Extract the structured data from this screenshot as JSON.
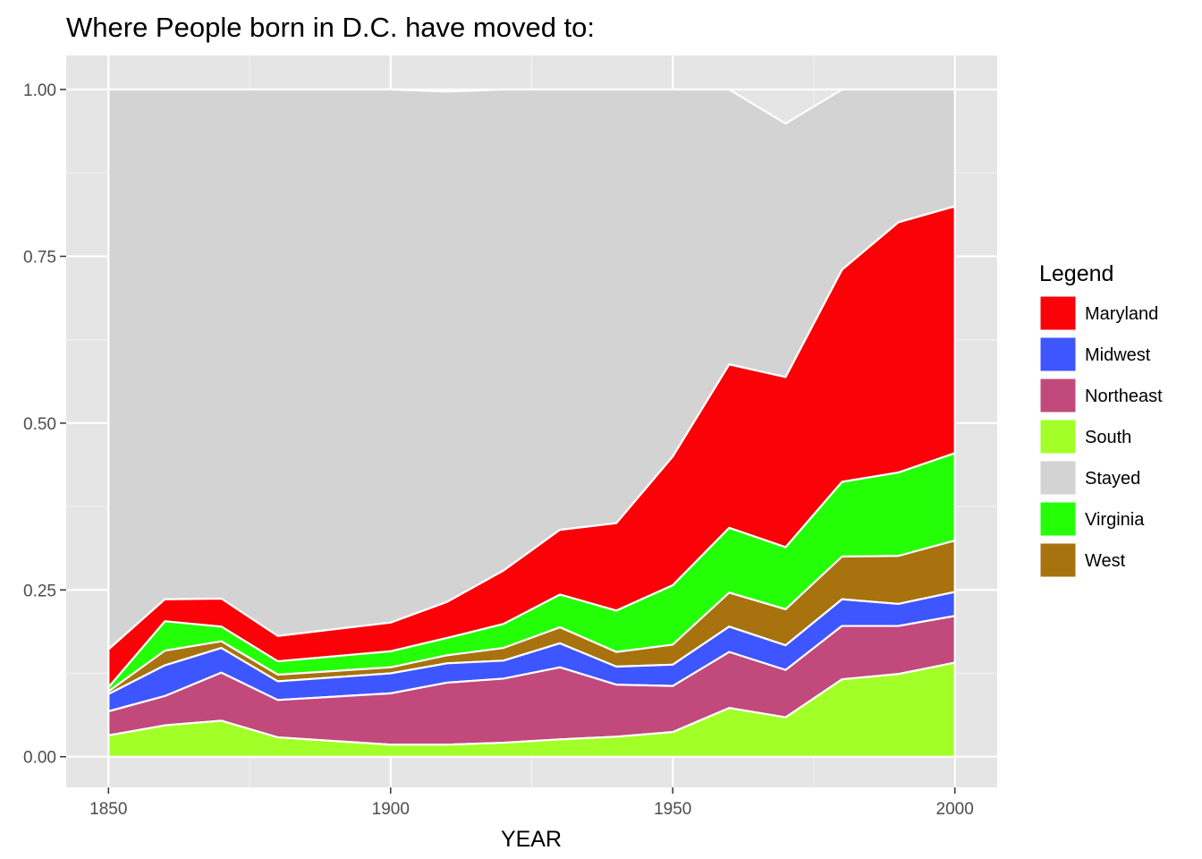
{
  "chart_data": {
    "type": "area",
    "stacked": true,
    "title": "Where People born in D.C. have moved to:",
    "xlabel": "YEAR",
    "ylabel": "",
    "xlim": [
      1842.5,
      2007.5
    ],
    "ylim": [
      -0.046,
      1.051
    ],
    "x_ticks": [
      1850,
      1900,
      1950,
      2000
    ],
    "y_ticks": [
      0,
      0.25,
      0.5,
      0.75,
      1.0
    ],
    "x_tick_labels": [
      "1850",
      "1900",
      "1950",
      "2000"
    ],
    "y_tick_labels": [
      "0.00",
      "0.25",
      "0.50",
      "0.75",
      "1.00"
    ],
    "x": [
      1850,
      1860,
      1870,
      1880,
      1900,
      1910,
      1920,
      1930,
      1940,
      1950,
      1960,
      1970,
      1980,
      1990,
      2000
    ],
    "series": [
      {
        "name": "South",
        "color": "#A2FF27",
        "values": [
          0.032,
          0.047,
          0.054,
          0.029,
          0.018,
          0.018,
          0.021,
          0.026,
          0.03,
          0.037,
          0.073,
          0.059,
          0.116,
          0.124,
          0.141
        ]
      },
      {
        "name": "Northeast",
        "color": "#C2497B",
        "values": [
          0.036,
          0.044,
          0.072,
          0.056,
          0.077,
          0.093,
          0.096,
          0.108,
          0.078,
          0.069,
          0.084,
          0.071,
          0.08,
          0.072,
          0.07
        ]
      },
      {
        "name": "Midwest",
        "color": "#3D56FF",
        "values": [
          0.026,
          0.046,
          0.037,
          0.028,
          0.03,
          0.029,
          0.027,
          0.036,
          0.027,
          0.032,
          0.038,
          0.037,
          0.04,
          0.033,
          0.036
        ]
      },
      {
        "name": "West",
        "color": "#A8720E",
        "values": [
          0.004,
          0.022,
          0.01,
          0.01,
          0.009,
          0.012,
          0.019,
          0.024,
          0.022,
          0.03,
          0.051,
          0.054,
          0.064,
          0.072,
          0.077
        ]
      },
      {
        "name": "Virginia",
        "color": "#24FF07",
        "values": [
          0.006,
          0.044,
          0.022,
          0.02,
          0.024,
          0.026,
          0.036,
          0.049,
          0.062,
          0.089,
          0.097,
          0.093,
          0.112,
          0.125,
          0.131
        ]
      },
      {
        "name": "Maryland",
        "color": "#FA0207",
        "values": [
          0.057,
          0.033,
          0.042,
          0.038,
          0.043,
          0.054,
          0.08,
          0.097,
          0.131,
          0.193,
          0.245,
          0.255,
          0.318,
          0.375,
          0.37
        ]
      },
      {
        "name": "Stayed",
        "color": "#D3D3D3",
        "values": [
          0.839,
          0.764,
          0.763,
          0.819,
          0.799,
          0.765,
          0.721,
          0.66,
          0.65,
          0.55,
          0.412,
          0.38,
          0.27,
          0.199,
          0.175
        ]
      }
    ],
    "legend": {
      "title": "Legend",
      "position": "right",
      "entries": [
        {
          "label": "Maryland",
          "color": "#FA0207"
        },
        {
          "label": "Midwest",
          "color": "#3D56FF"
        },
        {
          "label": "Northeast",
          "color": "#C2497B"
        },
        {
          "label": "South",
          "color": "#A2FF27"
        },
        {
          "label": "Stayed",
          "color": "#D3D3D3"
        },
        {
          "label": "Virginia",
          "color": "#24FF07"
        },
        {
          "label": "West",
          "color": "#A8720E"
        }
      ]
    },
    "panel_background": "#E5E5E5",
    "grid": true
  }
}
